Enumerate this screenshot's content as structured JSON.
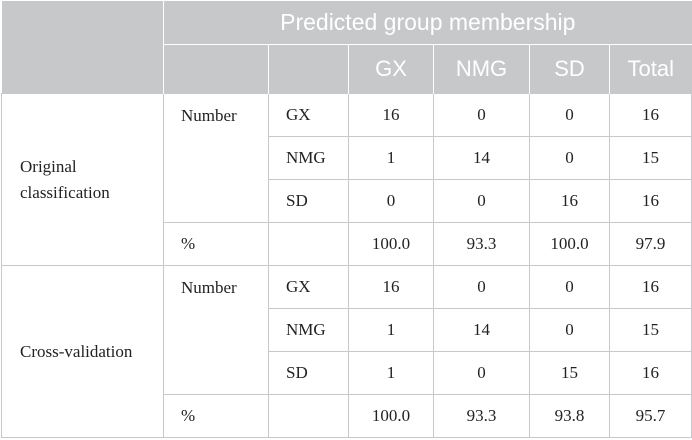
{
  "header": {
    "title": "Predicted group membership",
    "columns": [
      "GX",
      "NMG",
      "SD",
      "Total"
    ]
  },
  "sections": [
    {
      "label_line1": "Original",
      "label_line2": "classification",
      "stat_number": "Number",
      "stat_pct": "%",
      "rows": [
        {
          "group": "GX",
          "values": [
            "16",
            "0",
            "0",
            "16"
          ]
        },
        {
          "group": "NMG",
          "values": [
            "1",
            "14",
            "0",
            "15"
          ]
        },
        {
          "group": "SD",
          "values": [
            "0",
            "0",
            "16",
            "16"
          ]
        }
      ],
      "pct": [
        "100.0",
        "93.3",
        "100.0",
        "97.9"
      ]
    },
    {
      "label_line1": "Cross-validation",
      "stat_number": "Number",
      "stat_pct": "%",
      "rows": [
        {
          "group": "GX",
          "values": [
            "16",
            "0",
            "0",
            "16"
          ]
        },
        {
          "group": "NMG",
          "values": [
            "1",
            "14",
            "0",
            "15"
          ]
        },
        {
          "group": "SD",
          "values": [
            "1",
            "0",
            "15",
            "16"
          ]
        }
      ],
      "pct": [
        "100.0",
        "93.3",
        "93.8",
        "95.7"
      ]
    }
  ],
  "colors": {
    "header_bg": "#c7c8ca",
    "header_text": "#ffffff",
    "grid": "#c7c8ca"
  }
}
